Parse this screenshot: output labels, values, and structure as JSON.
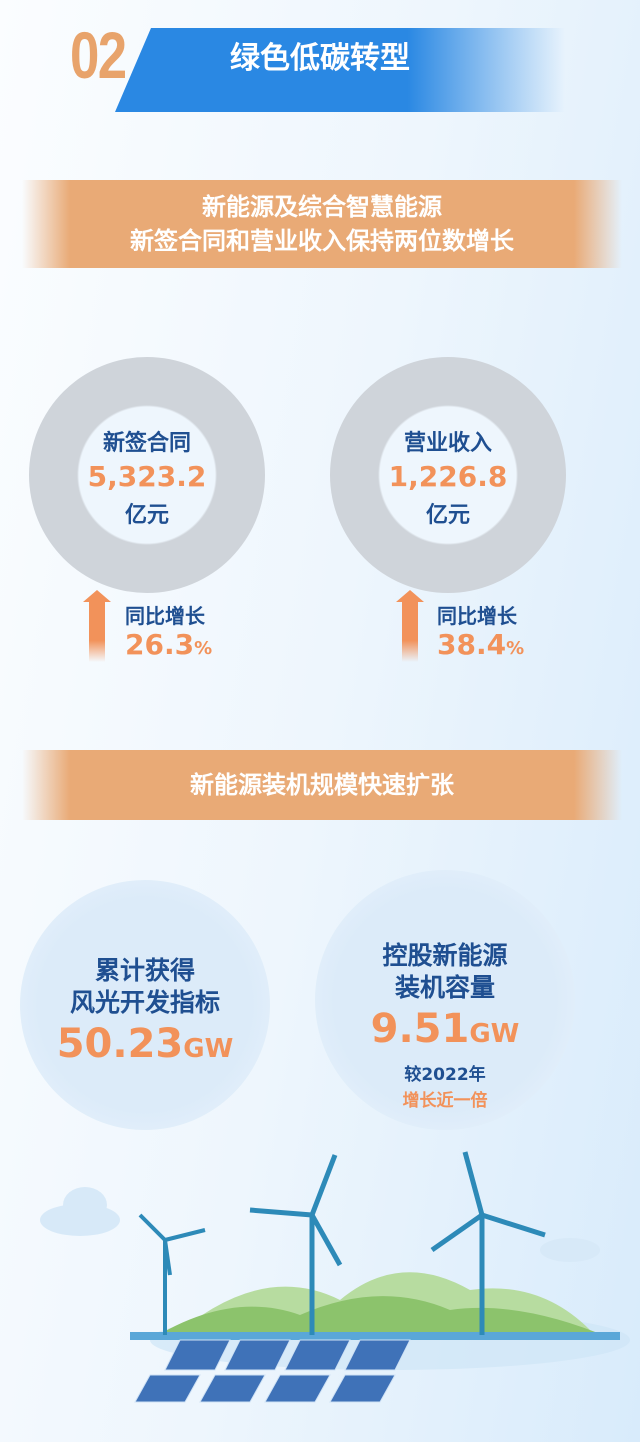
{
  "section": {
    "number": "02",
    "title": "绿色低碳转型"
  },
  "banner1": {
    "line1": "新能源及综合智慧能源",
    "line2": "新签合同和营业收入保持两位数增长"
  },
  "stats": [
    {
      "label": "新签合同",
      "value": "5,323.2",
      "unit": "亿元",
      "growth_label": "同比增长",
      "growth_value": "26.3",
      "growth_unit": "%"
    },
    {
      "label": "营业收入",
      "value": "1,226.8",
      "unit": "亿元",
      "growth_label": "同比增长",
      "growth_value": "38.4",
      "growth_unit": "%"
    }
  ],
  "banner2": {
    "text": "新能源装机规模快速扩张"
  },
  "bubbles": [
    {
      "line1": "累计获得",
      "line2": "风光开发指标",
      "value": "50.23",
      "unit": "GW"
    },
    {
      "line1": "控股新能源",
      "line2": "装机容量",
      "value": "9.51",
      "unit": "GW",
      "note1": "较2022年",
      "note2": "增长近一倍"
    }
  ],
  "colors": {
    "blue": "#2a88e3",
    "orange": "#e9aa76",
    "navy": "#1f4f91",
    "accent": "#f2925a"
  }
}
